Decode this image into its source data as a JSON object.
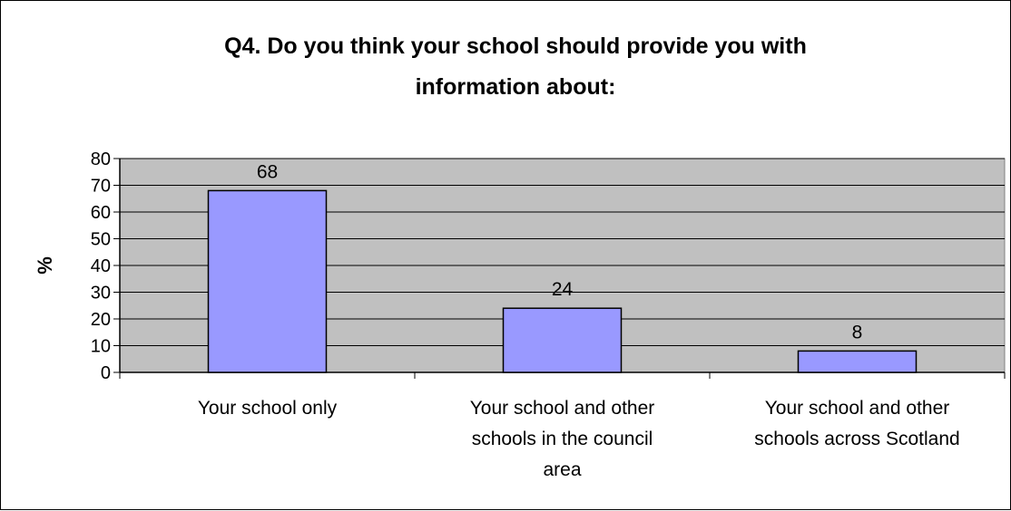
{
  "chart_data": {
    "type": "bar",
    "title": "Q4. Do you think your school should provide you with information about:",
    "title_lines": [
      "Q4. Do you think your school should provide you with",
      "information about:"
    ],
    "ylabel": "%",
    "xlabel": "",
    "ylim": [
      0,
      80
    ],
    "yticks": [
      0,
      10,
      20,
      30,
      40,
      50,
      60,
      70,
      80
    ],
    "categories": [
      "Your school only",
      "Your school and other schools in the council area",
      "Your school and other schools across Scotland"
    ],
    "category_lines": [
      [
        "Your school only"
      ],
      [
        "Your school and other",
        "schools in the council",
        "area"
      ],
      [
        "Your school and other",
        "schools across Scotland"
      ]
    ],
    "values": [
      68,
      24,
      8
    ],
    "data_labels": [
      "68",
      "24",
      "8"
    ],
    "grid": true,
    "legend": "none",
    "colors": {
      "bar_fill": "#9999ff",
      "bar_stroke": "#000000",
      "plot_background": "#c0c0c0",
      "gridline": "#000000"
    }
  }
}
